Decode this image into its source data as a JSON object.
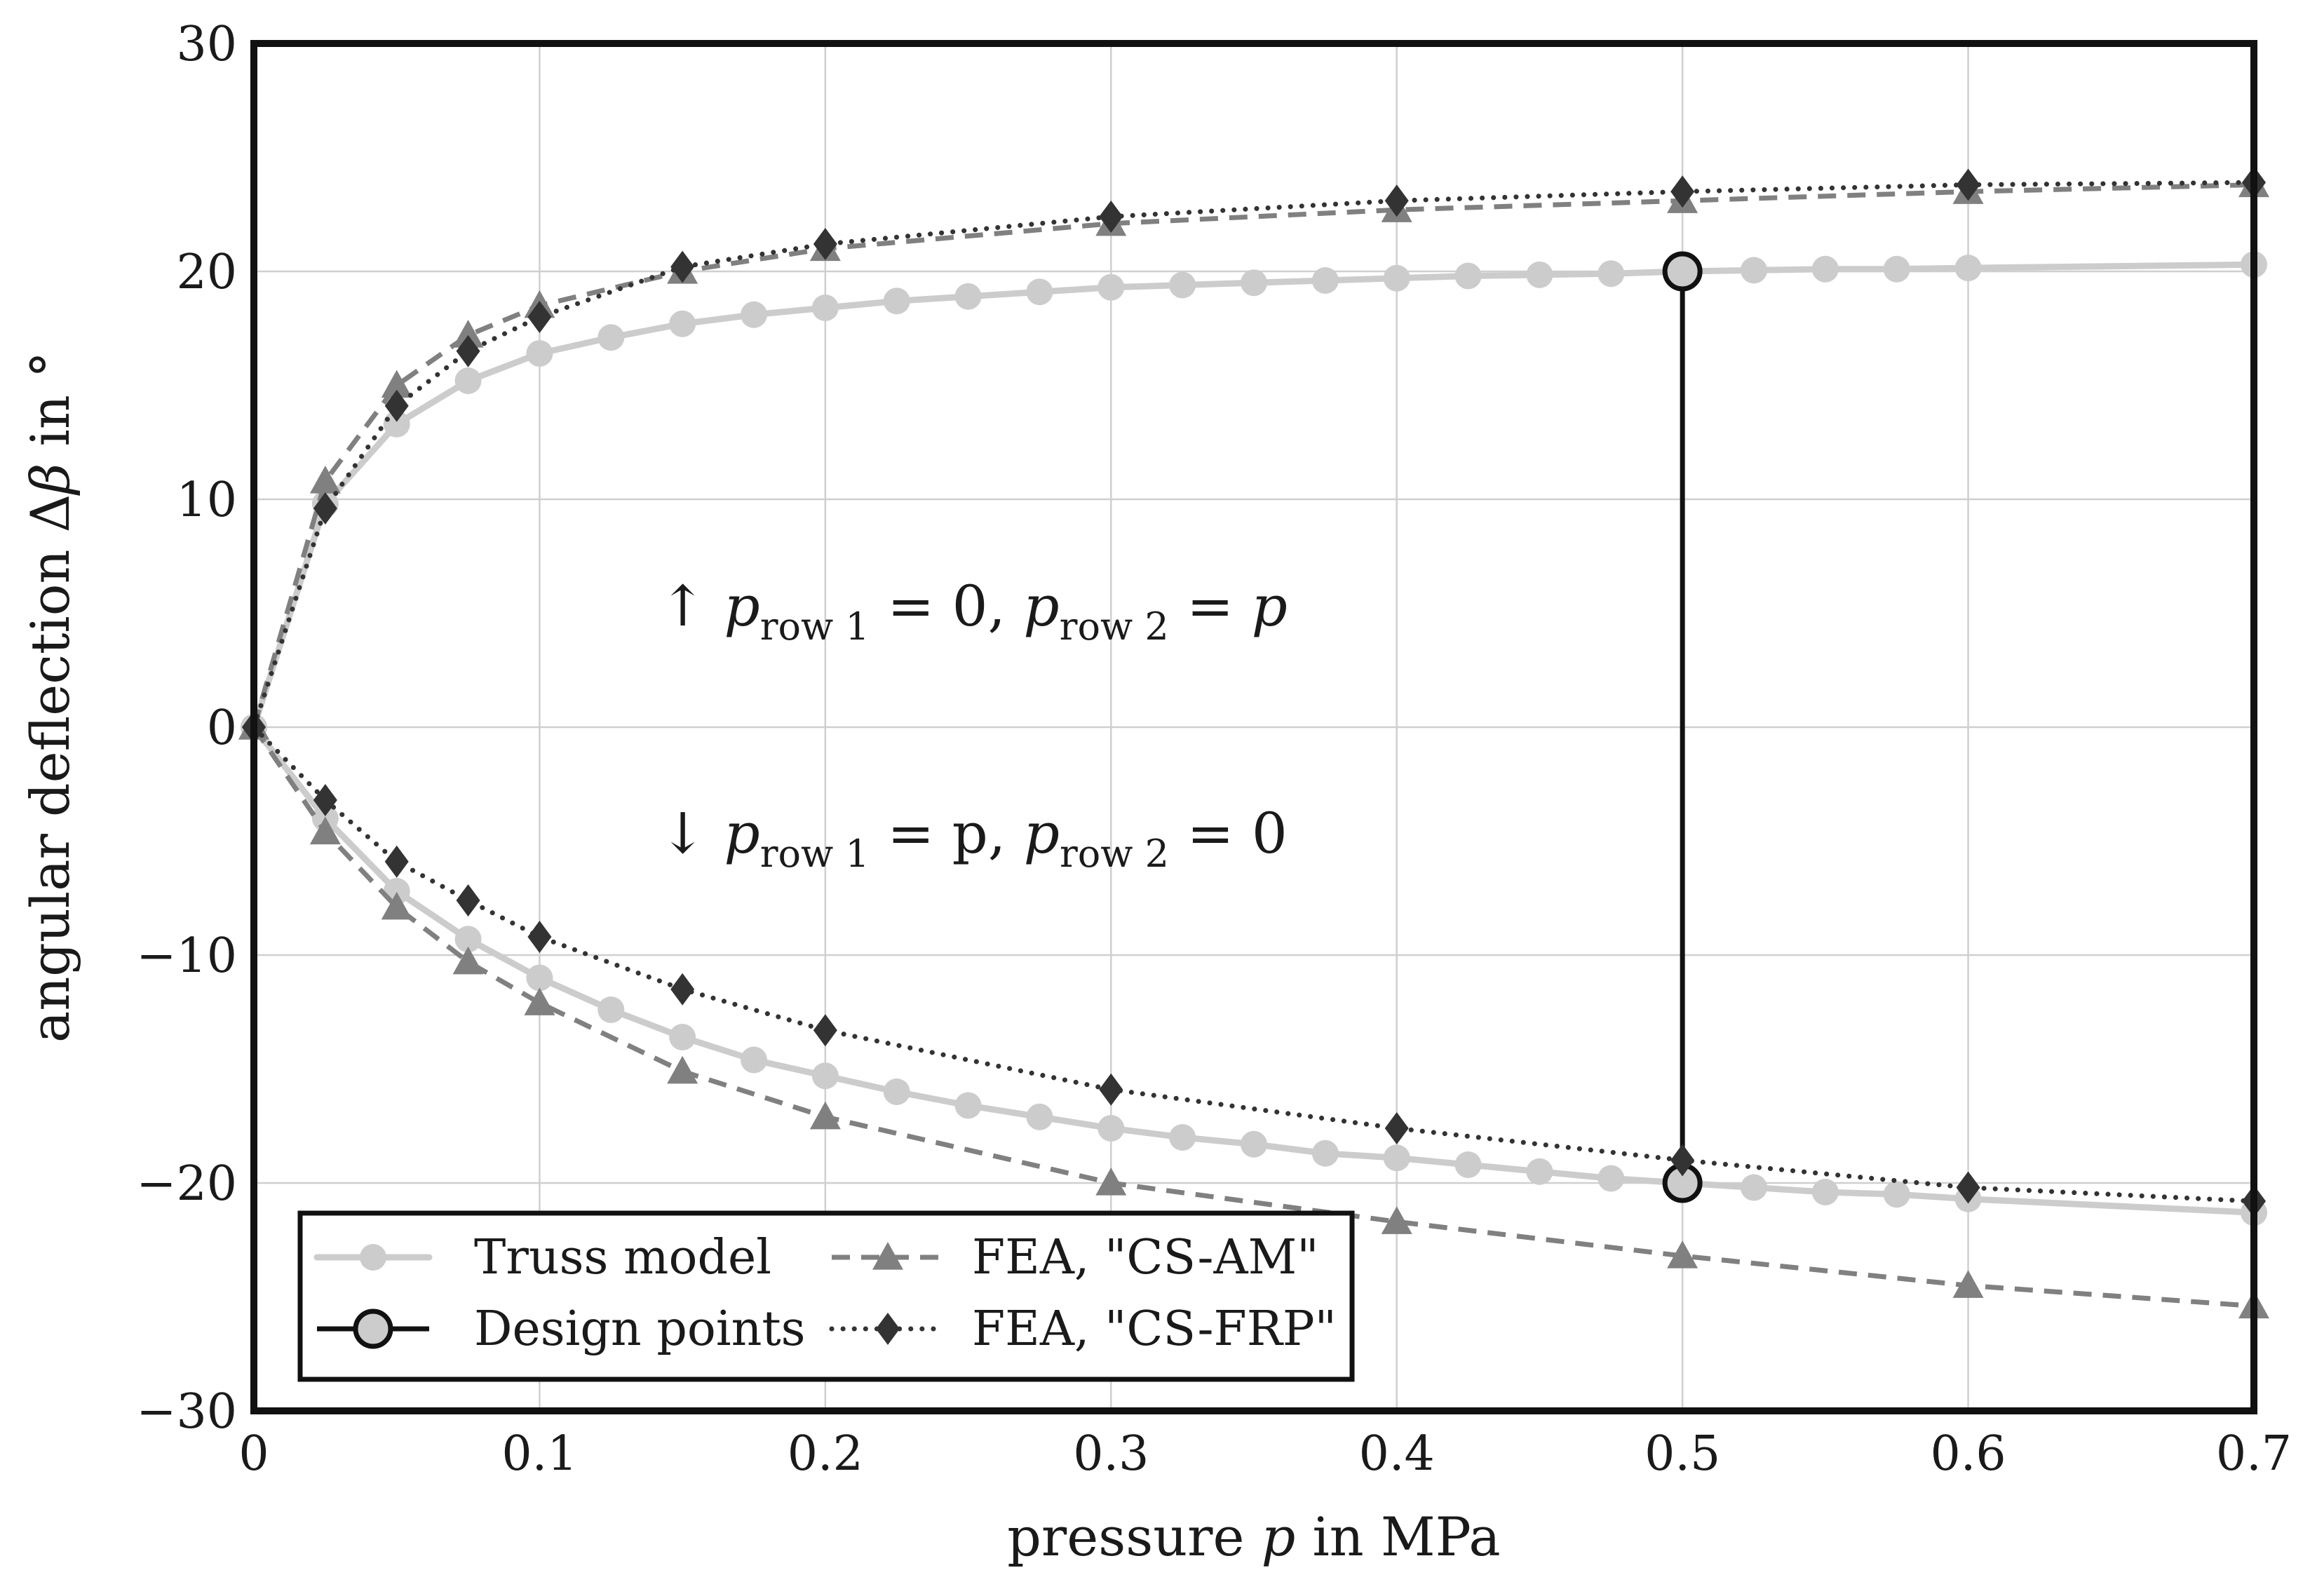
{
  "chart_data": {
    "type": "line",
    "title": "",
    "xlabel_parts": {
      "prefix": "pressure ",
      "var": "p",
      "suffix": " in MPa"
    },
    "ylabel_parts": {
      "prefix": "angular deflection Δ",
      "var": "β",
      "suffix": " in °"
    },
    "xlim": [
      0,
      0.7
    ],
    "ylim": [
      -30,
      30
    ],
    "xticks": [
      0,
      0.1,
      0.2,
      0.3,
      0.4,
      0.5,
      0.6,
      0.7
    ],
    "xtick_labels": [
      "0",
      "0.1",
      "0.2",
      "0.3",
      "0.4",
      "0.5",
      "0.6",
      "0.7"
    ],
    "yticks": [
      -30,
      -20,
      -10,
      0,
      10,
      20,
      30
    ],
    "ytick_labels": [
      "−30",
      "−20",
      "−10",
      "0",
      "10",
      "20",
      "30"
    ],
    "grid": true,
    "legend_position": "bottom-left",
    "annotations": {
      "upper": {
        "arrow": "↑",
        "p": "p",
        "sub1": "row 1",
        "eq1": " = 0,  ",
        "sub2": "row 2",
        "eq2": " = ",
        "end": "p"
      },
      "lower": {
        "arrow": "↓",
        "p": "p",
        "sub1": "row 1",
        "eq1": " = p,  ",
        "sub2": "row 2",
        "eq2": " = 0",
        "end": ""
      }
    },
    "series": [
      {
        "name": "Truss model",
        "style": "solid",
        "color": "#cccccc",
        "marker": "circle",
        "branches": [
          {
            "x": [
              0,
              0.025,
              0.05,
              0.075,
              0.1,
              0.125,
              0.15,
              0.175,
              0.2,
              0.225,
              0.25,
              0.275,
              0.3,
              0.325,
              0.35,
              0.375,
              0.4,
              0.425,
              0.45,
              0.475,
              0.5,
              0.525,
              0.55,
              0.575,
              0.6,
              0.7
            ],
            "y": [
              0,
              9.8,
              13.3,
              15.2,
              16.4,
              17.1,
              17.7,
              18.1,
              18.4,
              18.7,
              18.9,
              19.1,
              19.3,
              19.4,
              19.5,
              19.6,
              19.7,
              19.8,
              19.85,
              19.9,
              20.0,
              20.05,
              20.1,
              20.1,
              20.15,
              20.3
            ]
          },
          {
            "x": [
              0,
              0.025,
              0.05,
              0.075,
              0.1,
              0.125,
              0.15,
              0.175,
              0.2,
              0.225,
              0.25,
              0.275,
              0.3,
              0.325,
              0.35,
              0.375,
              0.4,
              0.425,
              0.45,
              0.475,
              0.5,
              0.525,
              0.55,
              0.575,
              0.6,
              0.7
            ],
            "y": [
              0,
              -4.0,
              -7.2,
              -9.3,
              -11.0,
              -12.4,
              -13.6,
              -14.6,
              -15.3,
              -16.0,
              -16.6,
              -17.1,
              -17.6,
              -18.0,
              -18.3,
              -18.7,
              -18.9,
              -19.2,
              -19.5,
              -19.8,
              -20.0,
              -20.2,
              -20.4,
              -20.5,
              -20.7,
              -21.3
            ]
          }
        ]
      },
      {
        "name": "Design points",
        "style": "solid",
        "color": "#111111",
        "marker": "circle-open",
        "branches": [
          {
            "x": [
              0.5,
              0.5
            ],
            "y": [
              20,
              -20
            ]
          }
        ]
      },
      {
        "name": "FEA, \"CS-AM\"",
        "style": "dashed",
        "color": "#808080",
        "marker": "triangle",
        "branches": [
          {
            "x": [
              0,
              0.025,
              0.05,
              0.075,
              0.1,
              0.15,
              0.2,
              0.3,
              0.4,
              0.5,
              0.6,
              0.7
            ],
            "y": [
              0,
              10.8,
              15.0,
              17.2,
              18.5,
              20.0,
              21.0,
              22.1,
              22.7,
              23.1,
              23.5,
              23.8
            ]
          },
          {
            "x": [
              0,
              0.025,
              0.05,
              0.075,
              0.1,
              0.15,
              0.2,
              0.3,
              0.4,
              0.5,
              0.6,
              0.7
            ],
            "y": [
              0,
              -4.6,
              -7.9,
              -10.3,
              -12.1,
              -15.1,
              -17.1,
              -20.0,
              -21.7,
              -23.2,
              -24.5,
              -25.4
            ]
          }
        ]
      },
      {
        "name": "FEA, \"CS-FRP\"",
        "style": "dotted",
        "color": "#333333",
        "marker": "diamond",
        "branches": [
          {
            "x": [
              0,
              0.025,
              0.05,
              0.075,
              0.1,
              0.15,
              0.2,
              0.3,
              0.4,
              0.5,
              0.6,
              0.7
            ],
            "y": [
              0,
              9.6,
              14.1,
              16.5,
              18.0,
              20.2,
              21.2,
              22.4,
              23.1,
              23.5,
              23.8,
              23.9
            ]
          },
          {
            "x": [
              0,
              0.025,
              0.05,
              0.075,
              0.1,
              0.15,
              0.2,
              0.3,
              0.4,
              0.5,
              0.6,
              0.7
            ],
            "y": [
              0,
              -3.2,
              -5.9,
              -7.6,
              -9.2,
              -11.5,
              -13.3,
              -15.9,
              -17.6,
              -19.0,
              -20.2,
              -20.8
            ]
          }
        ]
      }
    ]
  }
}
